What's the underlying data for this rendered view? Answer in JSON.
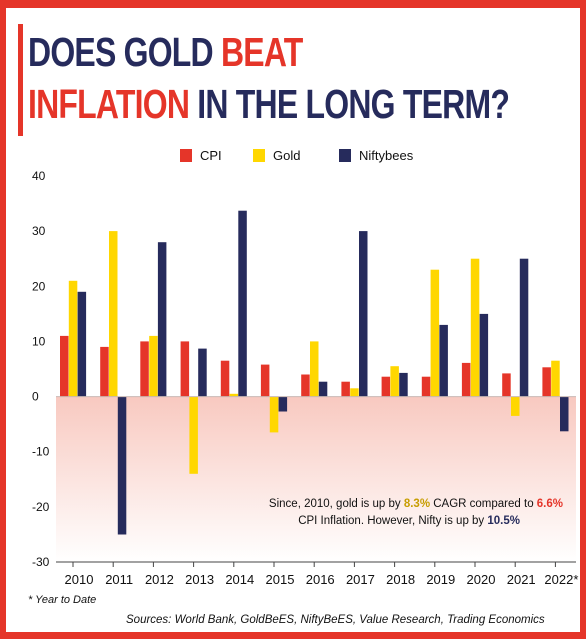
{
  "title": {
    "part1": "DOES GOLD ",
    "part2": "BEAT",
    "part3": "INFLATION",
    "part4": " IN THE LONG TERM?"
  },
  "colors": {
    "cpi": "#e53529",
    "gold": "#ffd700",
    "nifty": "#262b5c",
    "accent": "#e53529",
    "title_dark": "#262b5c"
  },
  "chart_data": {
    "type": "bar",
    "categories": [
      "2010",
      "2011",
      "2012",
      "2013",
      "2014",
      "2015",
      "2016",
      "2017",
      "2018",
      "2019",
      "2020",
      "2021",
      "2022*"
    ],
    "series": [
      {
        "name": "CPI",
        "values": [
          11,
          9,
          10,
          10,
          6.5,
          5.8,
          4,
          2.7,
          3.6,
          3.6,
          6.1,
          4.2,
          5.3
        ]
      },
      {
        "name": "Gold",
        "values": [
          21,
          30,
          11,
          -14,
          0.5,
          -6.5,
          10,
          1.5,
          5.5,
          23,
          25,
          -3.5,
          6.5
        ]
      },
      {
        "name": "Niftybees",
        "values": [
          19,
          -25,
          28,
          8.7,
          33.7,
          -2.7,
          2.7,
          30,
          4.3,
          13,
          15,
          25,
          -6.3
        ]
      }
    ],
    "yticks": [
      40,
      30,
      20,
      10,
      0,
      -10,
      -20,
      -30
    ],
    "ylim": [
      -30,
      40
    ],
    "legend": "top-center",
    "grid": false,
    "annotation": {
      "line1_a": "Since, 2010, gold is up by ",
      "line1_b": "8.3%",
      "line1_c": " CAGR compared to ",
      "line1_d": "6.6%",
      "line2_a": "CPI Inflation. However, Nifty is up by ",
      "line2_b": "10.5%"
    }
  },
  "footnote": "* Year to Date",
  "sources": "Sources: World Bank, GoldBeES, NiftyBeES, Value Research, Trading Economics"
}
